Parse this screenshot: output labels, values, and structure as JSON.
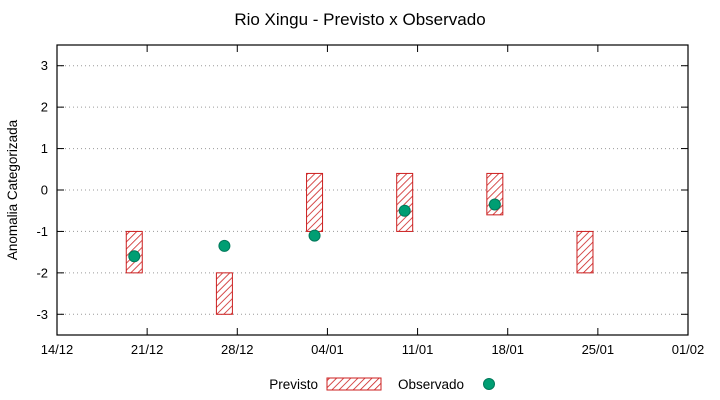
{
  "chart_data": {
    "type": "range-bar+scatter",
    "title": "Rio Xingu - Previsto x Observado",
    "ylabel": "Anomalia Categorizada",
    "x_tick_labels": [
      "14/12",
      "21/12",
      "28/12",
      "04/01",
      "11/01",
      "18/01",
      "25/01",
      "01/02"
    ],
    "x_tick_days": [
      0,
      7,
      14,
      21,
      28,
      35,
      42,
      49
    ],
    "y_ticks": [
      -3,
      -2,
      -1,
      0,
      1,
      2,
      3
    ],
    "xlim": [
      0,
      49
    ],
    "ylim": [
      -3.5,
      3.5
    ],
    "grid": "horizontal-dotted",
    "colors": {
      "previsto": "#cc1f1f",
      "observado": "#009e73",
      "observado_edge": "#00785a",
      "axis": "#000000",
      "grid": "#9a9a9a"
    },
    "series": [
      {
        "name": "Previsto",
        "type": "range_bar",
        "points": [
          {
            "date": "20/12",
            "day": 6,
            "low": -2.0,
            "high": -1.0
          },
          {
            "date": "27/12",
            "day": 13,
            "low": -3.0,
            "high": -2.0
          },
          {
            "date": "03/01",
            "day": 20,
            "low": -1.0,
            "high": 0.4
          },
          {
            "date": "10/01",
            "day": 27,
            "low": -1.0,
            "high": 0.4
          },
          {
            "date": "17/01",
            "day": 34,
            "low": -0.6,
            "high": 0.4
          },
          {
            "date": "24/01",
            "day": 41,
            "low": -2.0,
            "high": -1.0
          }
        ]
      },
      {
        "name": "Observado",
        "type": "scatter",
        "points": [
          {
            "date": "20/12",
            "day": 6,
            "value": -1.6
          },
          {
            "date": "27/12",
            "day": 13,
            "value": -1.35
          },
          {
            "date": "03/01",
            "day": 20,
            "value": -1.1
          },
          {
            "date": "10/01",
            "day": 27,
            "value": -0.5
          },
          {
            "date": "17/01",
            "day": 34,
            "value": -0.35
          }
        ]
      }
    ],
    "legend": {
      "position": "bottom-center",
      "entries": [
        "Previsto",
        "Observado"
      ]
    }
  }
}
